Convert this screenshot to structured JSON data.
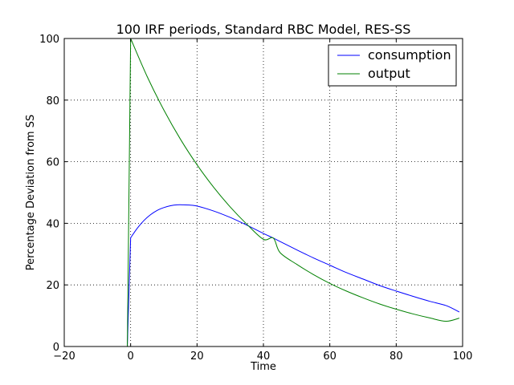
{
  "chart_data": {
    "type": "line",
    "title": "100 IRF periods, Standard RBC Model, RES-SS",
    "xlabel": "Time",
    "ylabel": "Percentage Deviation from SS",
    "xlim": [
      -20,
      100
    ],
    "ylim": [
      0,
      100
    ],
    "xticks": [
      -20,
      0,
      20,
      40,
      60,
      80,
      100
    ],
    "yticks": [
      0,
      20,
      40,
      60,
      80,
      100
    ],
    "xtick_labels": [
      "−20",
      "0",
      "20",
      "40",
      "60",
      "80",
      "100"
    ],
    "ytick_labels": [
      "0",
      "20",
      "40",
      "60",
      "80",
      "100"
    ],
    "grid": true,
    "legend_position": "top-right",
    "series": [
      {
        "name": "consumption",
        "color": "#0000ff",
        "x": [
          -20,
          -1,
          0,
          2,
          4,
          6,
          8,
          10,
          12,
          14,
          16,
          18,
          20,
          25,
          30,
          35,
          40,
          43,
          45,
          50,
          55,
          60,
          65,
          70,
          75,
          80,
          85,
          90,
          95,
          99
        ],
        "y": [
          0,
          0,
          35.3,
          38.4,
          40.9,
          42.8,
          44.2,
          45.1,
          45.7,
          46.0,
          46.0,
          45.9,
          45.6,
          44.0,
          41.9,
          39.4,
          36.7,
          35.2,
          34.1,
          31.4,
          28.8,
          26.4,
          24.0,
          21.9,
          19.8,
          18.0,
          16.3,
          14.7,
          13.3,
          11.2
        ]
      },
      {
        "name": "output",
        "color": "#008000",
        "x": [
          -20,
          -1,
          0,
          5,
          10,
          15,
          20,
          25,
          30,
          35,
          40,
          43,
          45,
          50,
          55,
          60,
          65,
          70,
          75,
          80,
          85,
          90,
          95,
          99
        ],
        "y": [
          0,
          0,
          100,
          87.6,
          76.8,
          67.3,
          59.0,
          51.7,
          45.3,
          39.7,
          34.8,
          35.2,
          30.5,
          26.7,
          23.4,
          20.5,
          18.0,
          15.8,
          13.8,
          12.1,
          10.6,
          9.3,
          8.2,
          9.2
        ]
      }
    ]
  }
}
